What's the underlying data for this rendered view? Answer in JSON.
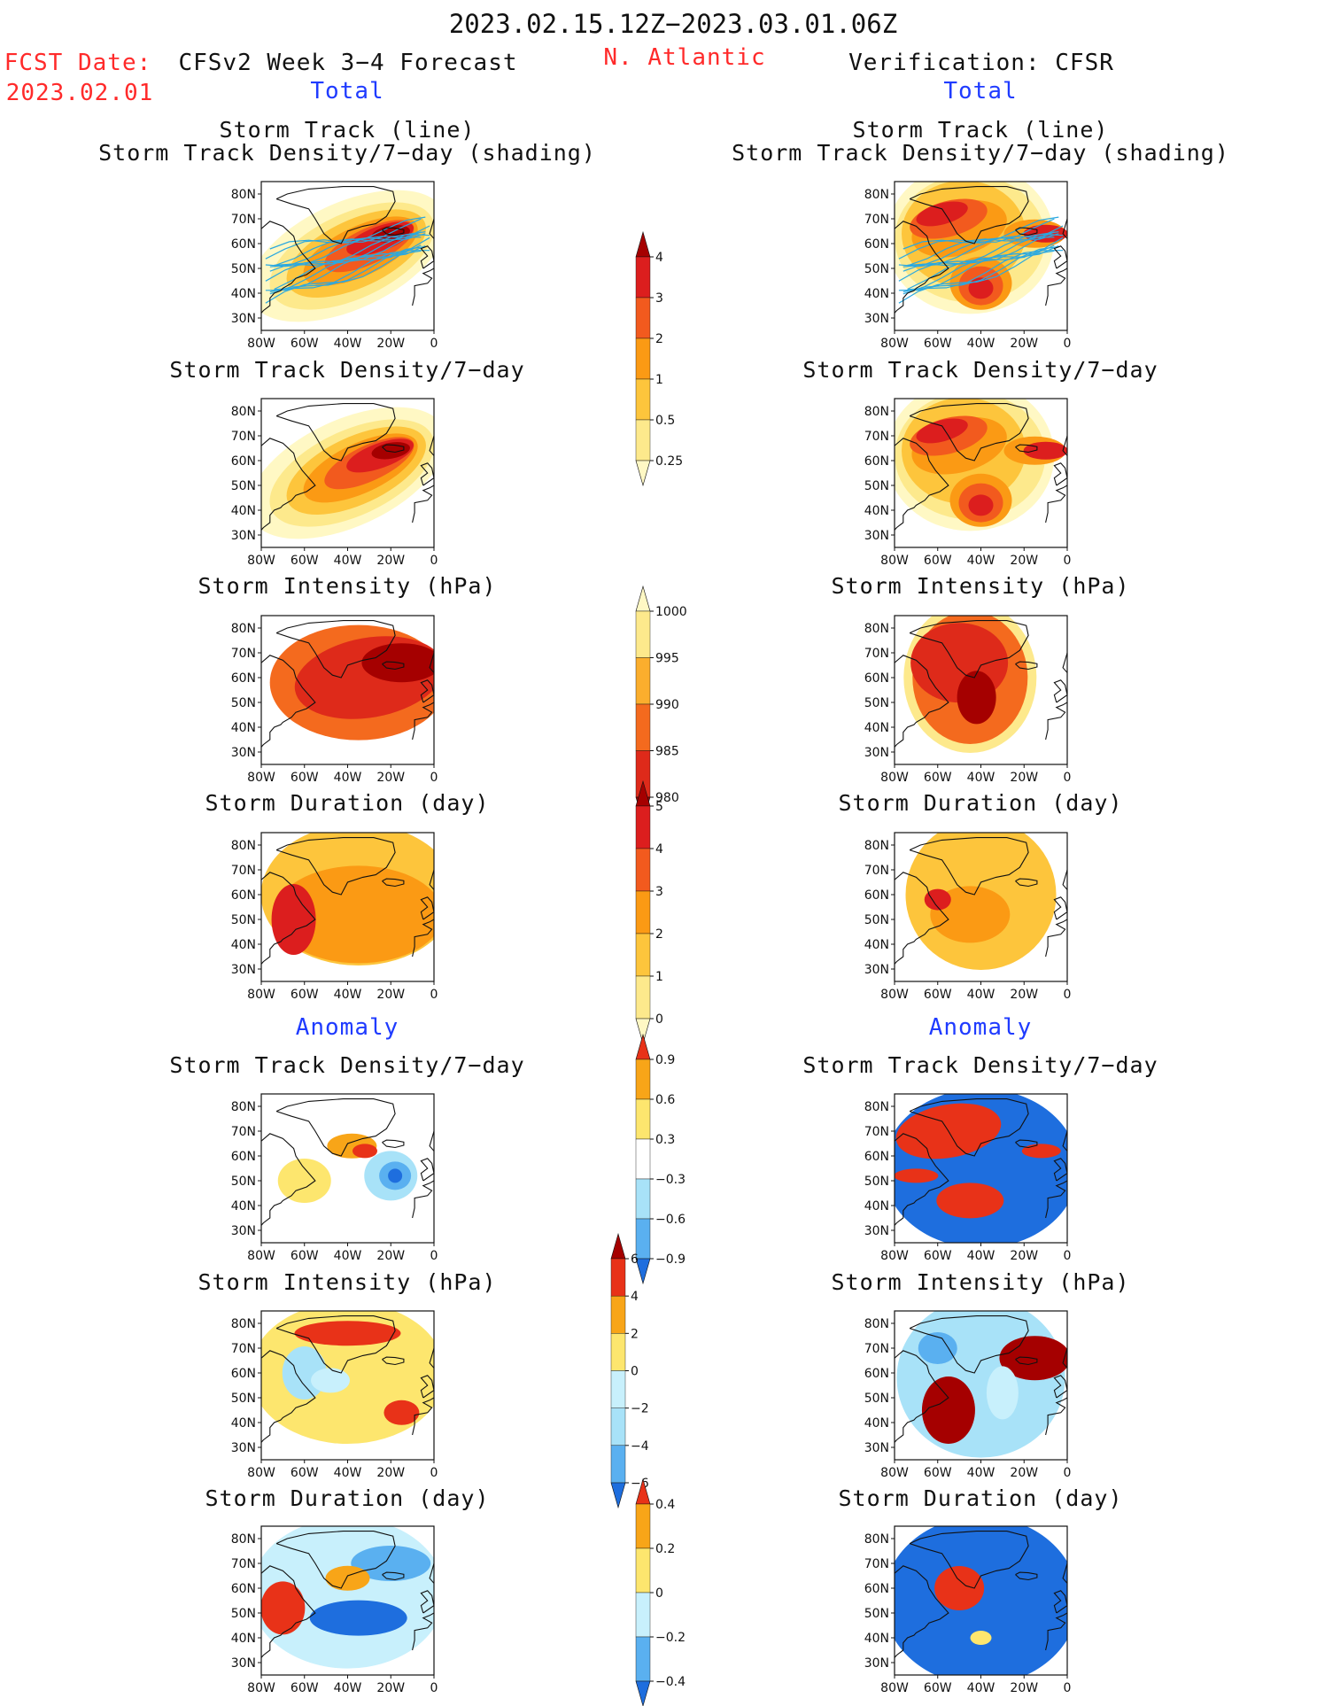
{
  "header": {
    "period": "2023.02.15.12Z−2023.03.01.06Z",
    "fcst_label": "FCST Date:",
    "fcst_date": "2023.02.01",
    "model": "CFSv2 Week 3−4 Forecast",
    "region": "N. Atlantic",
    "verification": "Verification: CFSR"
  },
  "sections": {
    "total": "Total",
    "anomaly": "Anomaly"
  },
  "panel_titles": {
    "track_line": "Storm Track (line)",
    "track_shading": "Storm Track Density/7−day (shading)",
    "density": "Storm Track Density/7−day",
    "intensity": "Storm Intensity (hPa)",
    "duration": "Storm Duration (day)"
  },
  "axes": {
    "lat_ticks": [
      "80N",
      "70N",
      "60N",
      "50N",
      "40N",
      "30N"
    ],
    "lon_ticks": [
      "80W",
      "60W",
      "40W",
      "20W",
      "0"
    ]
  },
  "colorbars": {
    "density_total": {
      "labels": [
        "4",
        "3",
        "2",
        "1",
        "0.5",
        "0.25"
      ],
      "colors": [
        "#a50000",
        "#dc1e1e",
        "#f25a1e",
        "#fb9a14",
        "#fdc53c",
        "#fde98c",
        "#fff8c4"
      ]
    },
    "intensity_total": {
      "labels": [
        "1000",
        "995",
        "990",
        "985",
        "980"
      ],
      "colors": [
        "#fff8c4",
        "#fde98c",
        "#fbae2d",
        "#f46a1e",
        "#de2a1a",
        "#a50000"
      ]
    },
    "duration_total": {
      "labels": [
        "5",
        "4",
        "3",
        "2",
        "1",
        "0"
      ],
      "colors": [
        "#a50000",
        "#dc1e1e",
        "#f25a1e",
        "#fb9a14",
        "#fdc53c",
        "#fde98c",
        "#fff8c4"
      ]
    },
    "density_anom": {
      "labels": [
        "0.9",
        "0.6",
        "0.3",
        "−0.3",
        "−0.6",
        "−0.9"
      ],
      "colors": [
        "#e83218",
        "#f8a518",
        "#fde66e",
        "#ffffff",
        "#a8e2f8",
        "#5ab0f0",
        "#1e6ede"
      ]
    },
    "intensity_anom": {
      "labels": [
        "6",
        "4",
        "2",
        "0",
        "−2",
        "−4",
        "−6"
      ],
      "colors": [
        "#a50000",
        "#e83218",
        "#f8a518",
        "#fde66e",
        "#c8f0fc",
        "#a8e2f8",
        "#5ab0f0",
        "#1e6ede"
      ]
    },
    "duration_anom": {
      "labels": [
        "0.4",
        "0.2",
        "0",
        "−0.2",
        "−0.4"
      ],
      "colors": [
        "#e83218",
        "#f8a518",
        "#fde66e",
        "#c8f0fc",
        "#5ab0f0",
        "#1e6ede"
      ]
    }
  },
  "colors": {
    "red_text": "#ff2a2a",
    "blue_text": "#1f3bff",
    "track_line": "#2aa8e0"
  }
}
